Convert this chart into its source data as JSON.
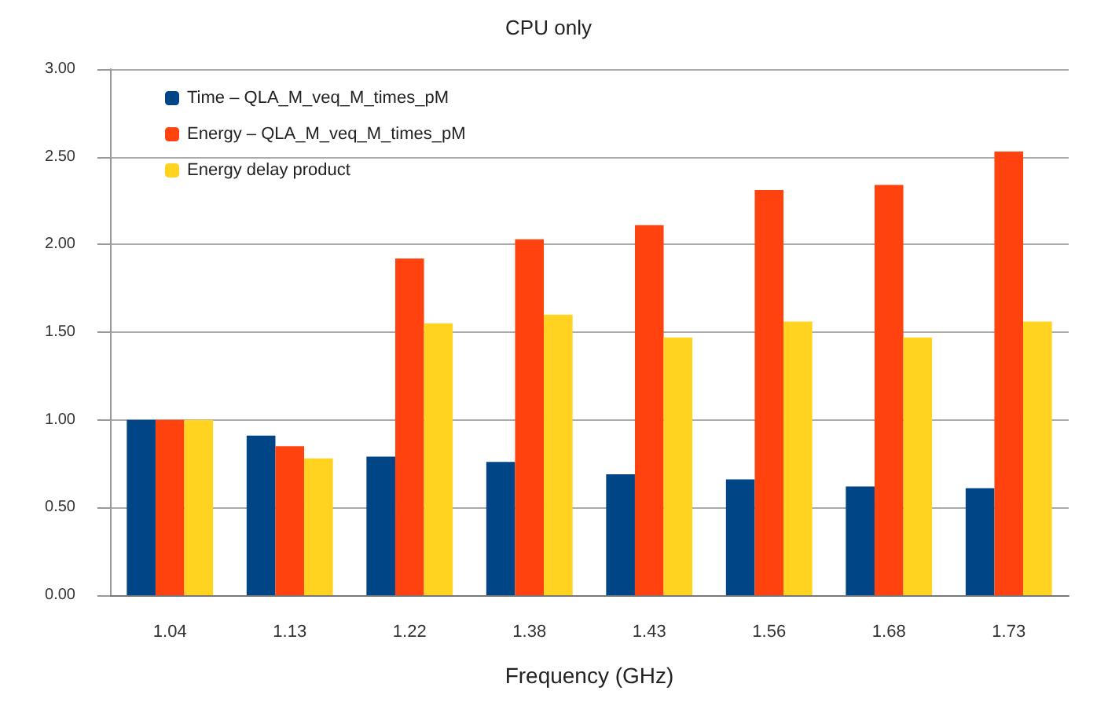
{
  "chart_data": {
    "type": "bar",
    "title": "CPU only",
    "xlabel": "Frequency (GHz)",
    "categories": [
      "1.04",
      "1.13",
      "1.22",
      "1.38",
      "1.43",
      "1.56",
      "1.68",
      "1.73"
    ],
    "series": [
      {
        "name": "Time – QLA_M_veq_M_times_pM",
        "color": "#004586",
        "values": [
          1.0,
          0.91,
          0.79,
          0.76,
          0.69,
          0.66,
          0.62,
          0.61
        ]
      },
      {
        "name": "Energy – QLA_M_veq_M_times_pM",
        "color": "#ff420e",
        "values": [
          1.0,
          0.85,
          1.92,
          2.03,
          2.11,
          2.31,
          2.34,
          2.53
        ]
      },
      {
        "name": "Energy delay product",
        "color": "#ffd320",
        "values": [
          1.0,
          0.78,
          1.55,
          1.6,
          1.47,
          1.56,
          1.47,
          1.56
        ]
      }
    ],
    "ylim": [
      0,
      3
    ],
    "yticks": [
      {
        "value": 0,
        "label": "0.00"
      },
      {
        "value": 0.5,
        "label": "0.50"
      },
      {
        "value": 1,
        "label": "1.00"
      },
      {
        "value": 1.5,
        "label": "1.50"
      },
      {
        "value": 2,
        "label": "2.00"
      },
      {
        "value": 2.5,
        "label": "2.50"
      },
      {
        "value": 3,
        "label": "3.00"
      }
    ],
    "grid": "y",
    "legend": "top left"
  }
}
